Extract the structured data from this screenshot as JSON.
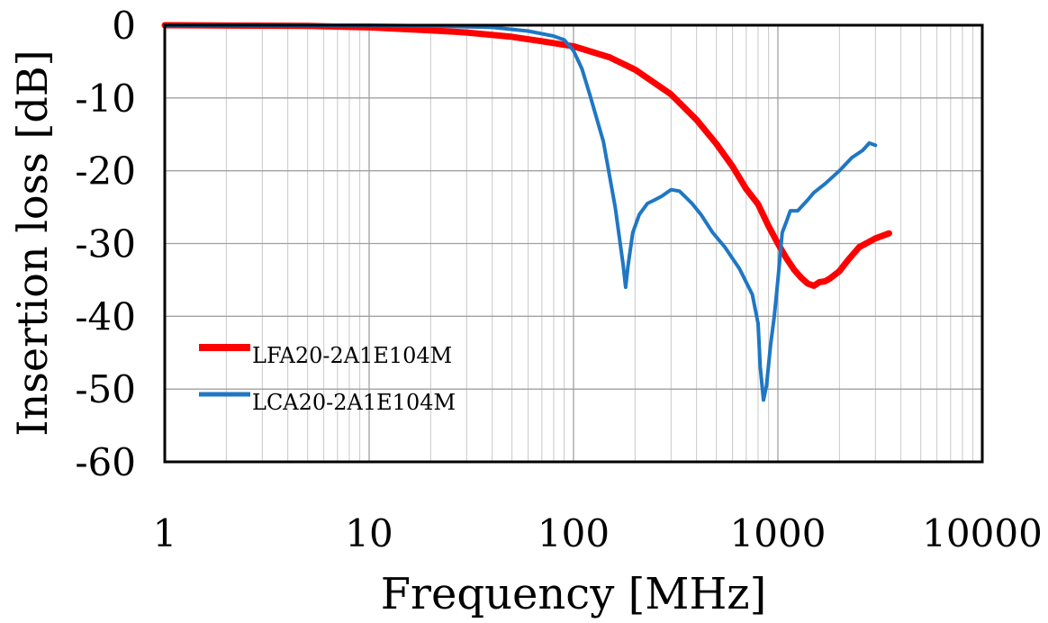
{
  "chart_data": {
    "type": "line",
    "title": "",
    "xlabel": "Frequency [MHz]",
    "ylabel": "Insertion loss [dB]",
    "x_scale": "log",
    "xlim": [
      1,
      10000
    ],
    "ylim": [
      -60,
      0
    ],
    "x_ticks": [
      1,
      10,
      100,
      1000,
      10000
    ],
    "x_tick_labels": [
      "1",
      "10",
      "100",
      "1000",
      "10000"
    ],
    "y_ticks": [
      0,
      -10,
      -20,
      -30,
      -40,
      -50,
      -60
    ],
    "y_tick_labels": [
      "0",
      "-10",
      "-20",
      "-30",
      "-40",
      "-50",
      "-60"
    ],
    "grid": true,
    "legend_position": "bottom-left",
    "series": [
      {
        "name": "LFA20-2A1E104M",
        "color": "#ff0000",
        "x": [
          1,
          5,
          10,
          20,
          30,
          50,
          70,
          100,
          150,
          200,
          300,
          400,
          500,
          600,
          700,
          800,
          900,
          1000,
          1100,
          1200,
          1300,
          1400,
          1500,
          1600,
          1700,
          1800,
          2000,
          2200,
          2500,
          3000,
          3500
        ],
        "y": [
          0,
          -0.1,
          -0.3,
          -0.7,
          -1.0,
          -1.6,
          -2.2,
          -2.9,
          -4.4,
          -6.1,
          -9.5,
          -13,
          -16.3,
          -19.4,
          -22.5,
          -24.6,
          -27.6,
          -30.0,
          -32.0,
          -33.6,
          -34.7,
          -35.5,
          -35.8,
          -35.3,
          -35.2,
          -34.8,
          -33.8,
          -32.3,
          -30.5,
          -29.3,
          -28.6
        ]
      },
      {
        "name": "LCA20-2A1E104M",
        "color": "#1f77c4",
        "x": [
          1,
          5,
          10,
          20,
          40,
          60,
          80,
          90,
          100,
          110,
          120,
          140,
          160,
          175,
          180,
          185,
          195,
          210,
          230,
          250,
          270,
          300,
          330,
          380,
          420,
          480,
          550,
          650,
          750,
          800,
          820,
          850,
          880,
          920,
          960,
          1000,
          1050,
          1100,
          1150,
          1250,
          1400,
          1500,
          1700,
          2000,
          2300,
          2600,
          2800,
          3000
        ],
        "y": [
          0,
          0,
          0,
          -0.1,
          -0.3,
          -0.8,
          -1.5,
          -2.0,
          -3.5,
          -6.0,
          -9.5,
          -16,
          -25,
          -33,
          -36,
          -33,
          -28.5,
          -26,
          -24.5,
          -24,
          -23.5,
          -22.6,
          -22.8,
          -24.5,
          -26,
          -28.5,
          -30.5,
          -33.5,
          -37,
          -41,
          -47,
          -51.5,
          -49.5,
          -44,
          -40,
          -35,
          -28.5,
          -27,
          -25.5,
          -25.5,
          -24,
          -23,
          -21.8,
          -20,
          -18.2,
          -17.2,
          -16.2,
          -16.5
        ]
      }
    ]
  }
}
